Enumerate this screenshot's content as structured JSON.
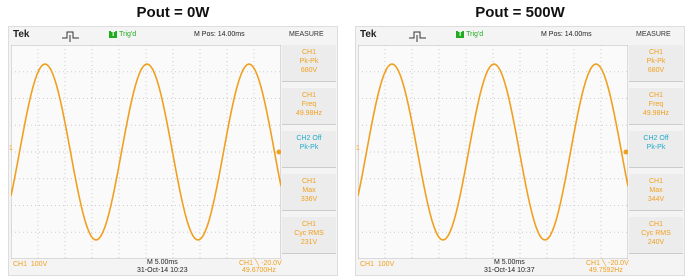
{
  "panels": [
    {
      "title": "Pout = 0W",
      "brand": "Tek",
      "trigger_icon": "T",
      "trigger": "Trig'd",
      "position": "M Pos: 14.00ms",
      "menu": "MEASURE",
      "channel_marker": "1",
      "measures": [
        {
          "source": "CH1",
          "name": "Pk-Pk",
          "value": "680V"
        },
        {
          "source": "CH1",
          "name": "Freq",
          "value": "49.98Hz"
        },
        {
          "source": "CH2 Off",
          "name": "Pk-Pk"
        },
        {
          "source": "CH1",
          "name": "Max",
          "value": "336V"
        },
        {
          "source": "CH1",
          "name": "Cyc RMS",
          "value": "231V"
        }
      ],
      "footer": {
        "channel": "CH1  100V",
        "timebase": "M 5.00ms",
        "trigger_level": "CH1 ╲ -20.0V",
        "datetime": "31-Oct-14 10:23",
        "frequency": "49.6700Hz"
      }
    },
    {
      "title": "Pout = 500W",
      "brand": "Tek",
      "trigger_icon": "T",
      "trigger": "Trig'd",
      "position": "M Pos: 14.00ms",
      "menu": "MEASURE",
      "channel_marker": "1",
      "measures": [
        {
          "source": "CH1",
          "name": "Pk-Pk",
          "value": "680V"
        },
        {
          "source": "CH1",
          "name": "Freq",
          "value": "49.98Hz"
        },
        {
          "source": "CH2 Off",
          "name": "Pk-Pk"
        },
        {
          "source": "CH1",
          "name": "Max",
          "value": "344V"
        },
        {
          "source": "CH1",
          "name": "Cyc RMS",
          "value": "240V"
        }
      ],
      "footer": {
        "channel": "CH1  100V",
        "timebase": "M 5.00ms",
        "trigger_level": "CH1 ╲ -20.0V",
        "datetime": "31-Oct-14 10:37",
        "frequency": "49.7592Hz"
      }
    }
  ]
}
